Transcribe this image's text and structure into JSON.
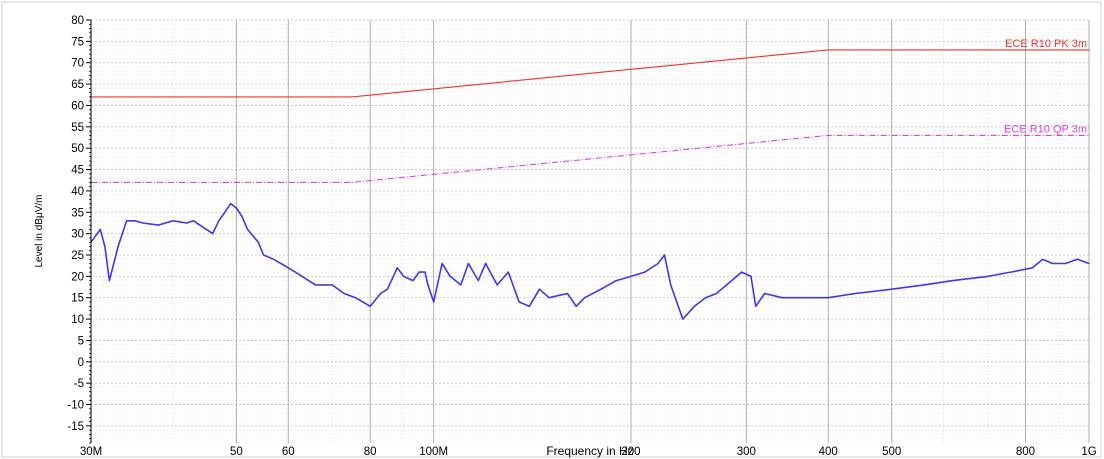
{
  "chart_data": {
    "type": "line",
    "title": "",
    "xlabel": "Frequency in Hz",
    "ylabel": "Level in dBµV/m",
    "xscale": "log",
    "xlim": [
      30,
      1000
    ],
    "ylim": [
      -19,
      80
    ],
    "x_ticks": [
      {
        "value": 30,
        "label": "30M"
      },
      {
        "value": 50,
        "label": "50"
      },
      {
        "value": 60,
        "label": "60"
      },
      {
        "value": 80,
        "label": "80"
      },
      {
        "value": 100,
        "label": "100M"
      },
      {
        "value": 200,
        "label": "200"
      },
      {
        "value": 300,
        "label": "300"
      },
      {
        "value": 400,
        "label": "400"
      },
      {
        "value": 500,
        "label": "500"
      },
      {
        "value": 800,
        "label": "800"
      },
      {
        "value": 1000,
        "label": "1G"
      }
    ],
    "y_ticks": [
      80,
      75,
      70,
      65,
      60,
      55,
      50,
      45,
      40,
      35,
      30,
      25,
      20,
      15,
      10,
      5,
      0,
      -5,
      -10,
      -15
    ],
    "grid": true,
    "series": [
      {
        "name": "ECE R10 PK 3m",
        "color": "#e8352f",
        "style": "solid",
        "points": [
          [
            30,
            62
          ],
          [
            75,
            62
          ],
          [
            400,
            73
          ],
          [
            1000,
            73
          ]
        ]
      },
      {
        "name": "ECE R10 QP 3m",
        "color": "#e040e0",
        "style": "dashdot",
        "points": [
          [
            30,
            42
          ],
          [
            75,
            42
          ],
          [
            400,
            53
          ],
          [
            1000,
            53
          ]
        ]
      },
      {
        "name": "",
        "color": "#3a3ae8",
        "style": "solid",
        "points": [
          [
            30,
            28
          ],
          [
            31,
            31
          ],
          [
            31.5,
            27
          ],
          [
            32,
            19
          ],
          [
            33,
            27
          ],
          [
            34,
            33
          ],
          [
            35,
            33
          ],
          [
            36,
            32.5
          ],
          [
            38,
            32
          ],
          [
            40,
            33
          ],
          [
            42,
            32.5
          ],
          [
            43,
            33
          ],
          [
            45,
            31
          ],
          [
            46,
            30
          ],
          [
            47,
            33
          ],
          [
            48,
            35
          ],
          [
            49,
            37
          ],
          [
            50,
            36
          ],
          [
            51,
            34
          ],
          [
            52,
            31
          ],
          [
            54,
            28
          ],
          [
            55,
            25
          ],
          [
            57,
            24
          ],
          [
            60,
            22
          ],
          [
            63,
            20
          ],
          [
            66,
            18
          ],
          [
            70,
            18
          ],
          [
            73,
            16
          ],
          [
            76,
            15
          ],
          [
            78,
            14
          ],
          [
            80,
            13
          ],
          [
            83,
            16
          ],
          [
            85,
            17
          ],
          [
            88,
            22
          ],
          [
            90,
            20
          ],
          [
            93,
            19
          ],
          [
            95,
            21
          ],
          [
            97,
            21
          ],
          [
            98,
            18
          ],
          [
            100,
            14
          ],
          [
            103,
            23
          ],
          [
            106,
            20
          ],
          [
            110,
            18
          ],
          [
            113,
            23
          ],
          [
            117,
            19
          ],
          [
            120,
            23
          ],
          [
            125,
            18
          ],
          [
            130,
            21
          ],
          [
            135,
            14
          ],
          [
            140,
            13
          ],
          [
            145,
            17
          ],
          [
            150,
            15
          ],
          [
            160,
            16
          ],
          [
            165,
            13
          ],
          [
            170,
            15
          ],
          [
            180,
            17
          ],
          [
            190,
            19
          ],
          [
            200,
            20
          ],
          [
            210,
            21
          ],
          [
            220,
            23
          ],
          [
            225,
            25
          ],
          [
            230,
            18
          ],
          [
            240,
            10
          ],
          [
            250,
            13
          ],
          [
            260,
            15
          ],
          [
            270,
            16
          ],
          [
            280,
            18
          ],
          [
            295,
            21
          ],
          [
            305,
            20
          ],
          [
            310,
            13
          ],
          [
            320,
            16
          ],
          [
            340,
            15
          ],
          [
            360,
            15
          ],
          [
            400,
            15
          ],
          [
            440,
            16
          ],
          [
            500,
            17
          ],
          [
            560,
            18
          ],
          [
            620,
            19
          ],
          [
            700,
            20
          ],
          [
            760,
            21
          ],
          [
            820,
            22
          ],
          [
            850,
            24
          ],
          [
            880,
            23
          ],
          [
            920,
            23
          ],
          [
            960,
            24
          ],
          [
            1000,
            23
          ]
        ]
      }
    ]
  }
}
